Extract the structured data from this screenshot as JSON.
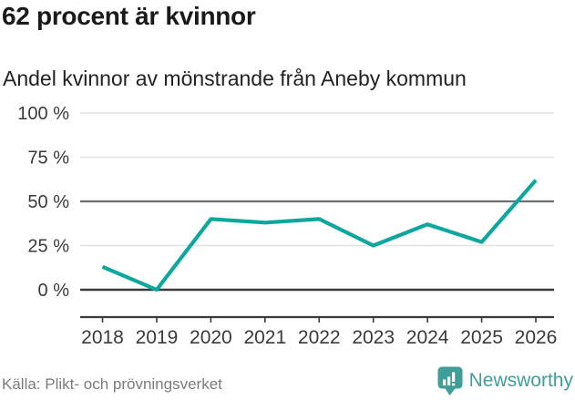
{
  "header": {
    "title": "62 procent är kvinnor",
    "subtitle": "Andel kvinnor av mönstrande från Aneby kommun"
  },
  "chart_data": {
    "type": "line",
    "title": "62 procent är kvinnor",
    "subtitle": "Andel kvinnor av mönstrande från Aneby kommun",
    "categories": [
      "2018",
      "2019",
      "2020",
      "2021",
      "2022",
      "2023",
      "2024",
      "2025",
      "2026"
    ],
    "values": [
      13,
      0,
      40,
      38,
      40,
      25,
      37,
      27,
      62
    ],
    "series_name": "Andel kvinnor av mönstrande",
    "unit": "%",
    "ylim": [
      0,
      100
    ],
    "yticks": [
      0,
      25,
      50,
      75,
      100
    ],
    "ytick_suffix": " %",
    "grid": "horizontal",
    "reference_line": 50,
    "legend": "none",
    "xlabel": "",
    "ylabel": ""
  },
  "colors": {
    "line": "#0da79d",
    "grid_light": "#e3e3e3",
    "grid_reference": "#6e6e6e",
    "grid_zero": "#3a3a3a",
    "axis": "#3a3a3a",
    "tick_label": "#3a3a3a",
    "brand_teal": "#3f9e98",
    "title_text": "#1a1a1a",
    "source_text": "#7b7b7b"
  },
  "footer": {
    "source": "Källa: Plikt- och prövningsverket",
    "brand": "Newsworthy"
  }
}
